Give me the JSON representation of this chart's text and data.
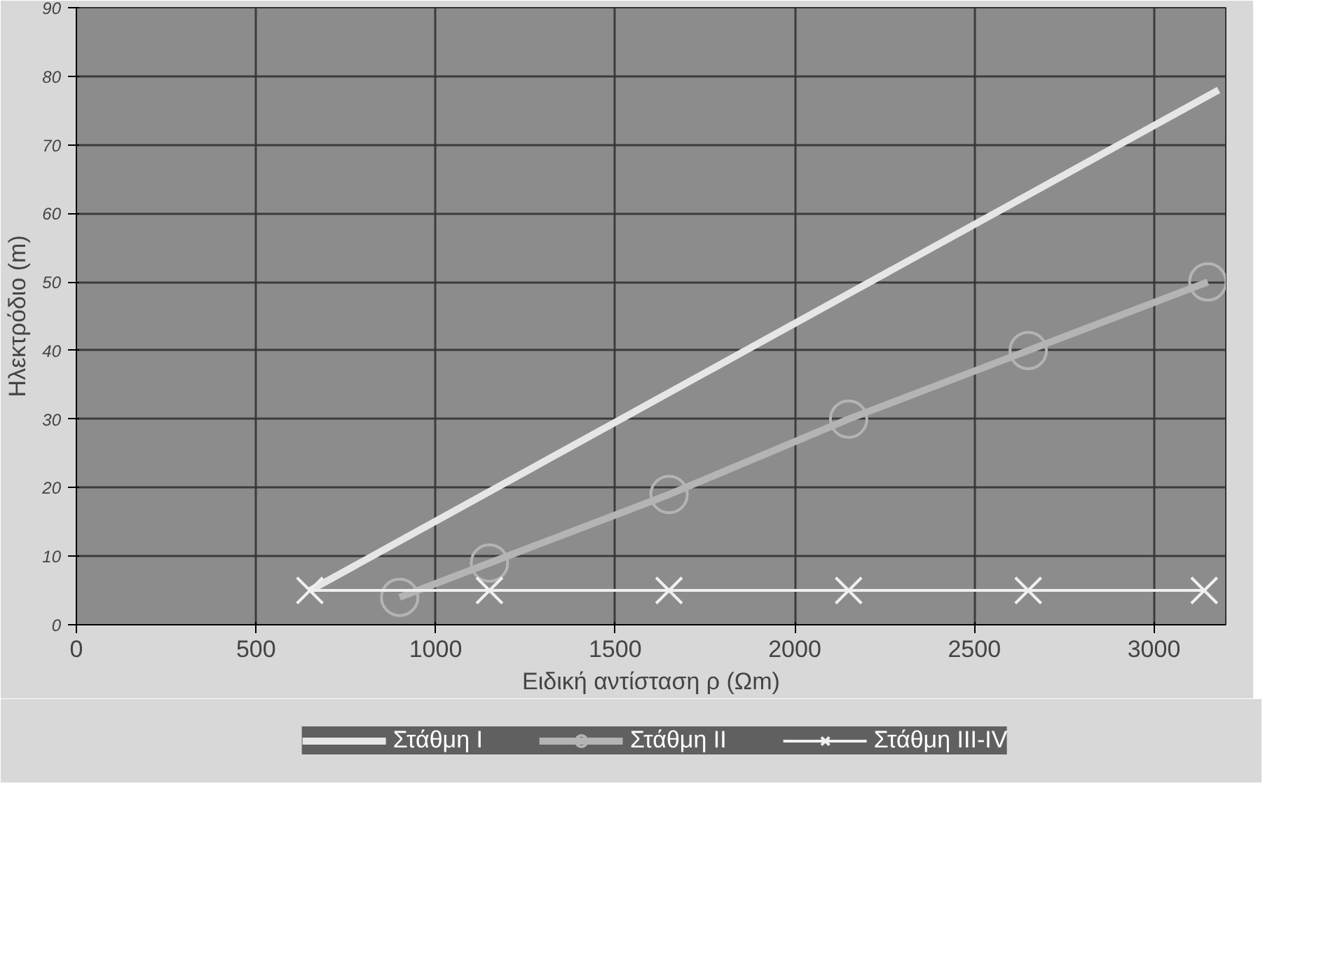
{
  "chart_data": {
    "type": "line",
    "xlabel": "Ειδική αντίσταση ρ (Ωm)",
    "ylabel": "Ηλεκτρόδιο (m)",
    "xlim": [
      0,
      3200
    ],
    "ylim": [
      0,
      90
    ],
    "xticks": [
      {
        "value": 0,
        "label": "0"
      },
      {
        "value": 500,
        "label": "500"
      },
      {
        "value": 1000,
        "label": "1000"
      },
      {
        "value": 1500,
        "label": "1500"
      },
      {
        "value": 2000,
        "label": "2000"
      },
      {
        "value": 2500,
        "label": "2500"
      },
      {
        "value": 3000,
        "label": "3000"
      }
    ],
    "yticks": [
      0,
      10,
      20,
      30,
      40,
      50,
      60,
      70,
      80,
      90
    ],
    "grid": true,
    "legend": "bottom",
    "series": [
      {
        "name": "Στάθμη I",
        "color": "#e6e6e6",
        "x": [
          650,
          3180
        ],
        "values": [
          5,
          78
        ]
      },
      {
        "name": "Στάθμη II",
        "color": "#b4b4b4",
        "marker": "circle",
        "x": [
          900,
          1150,
          1650,
          2150,
          2650,
          3150
        ],
        "values": [
          4,
          9,
          19,
          30,
          40,
          50
        ]
      },
      {
        "name": "Στάθμη III-IV",
        "color": "#f0f0f0",
        "marker": "cross",
        "x": [
          650,
          1150,
          1650,
          2150,
          2650,
          3140
        ],
        "values": [
          5,
          5,
          5,
          5,
          5,
          5
        ]
      }
    ]
  }
}
